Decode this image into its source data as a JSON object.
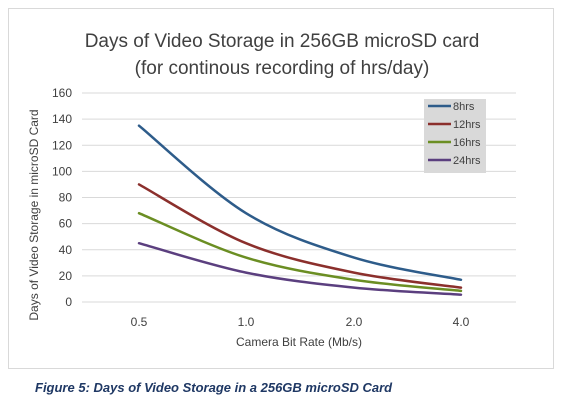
{
  "chart_data": {
    "type": "line",
    "title_lines": [
      "Days of Video Storage in 256GB microSD card",
      "(for continous recording of hrs/day)"
    ],
    "xlabel": "Camera Bit Rate (Mb/s)",
    "ylabel": "Days of Video Storage in microSD Card",
    "categories": [
      "0.5",
      "1.0",
      "2.0",
      "4.0"
    ],
    "yticks": [
      0,
      20,
      40,
      60,
      80,
      100,
      120,
      140,
      160
    ],
    "ylim": [
      0,
      160
    ],
    "grid": true,
    "legend_position": "top-right",
    "series": [
      {
        "name": "8hrs",
        "values": [
          135,
          68,
          34,
          17
        ],
        "color": "#2e5c8a"
      },
      {
        "name": "12hrs",
        "values": [
          90,
          45,
          22.5,
          11
        ],
        "color": "#8b2f2c"
      },
      {
        "name": "16hrs",
        "values": [
          68,
          34,
          17,
          8.5
        ],
        "color": "#6b8e23"
      },
      {
        "name": "24hrs",
        "values": [
          45,
          22.5,
          11,
          5.6
        ],
        "color": "#5b3f7f"
      }
    ]
  },
  "caption": "Figure 5: Days of Video Storage in a 256GB microSD Card",
  "colors": {
    "grid": "#d9d9d9",
    "legend_bg": "#d9d9d9",
    "text": "#404040",
    "caption": "#1f3864"
  }
}
